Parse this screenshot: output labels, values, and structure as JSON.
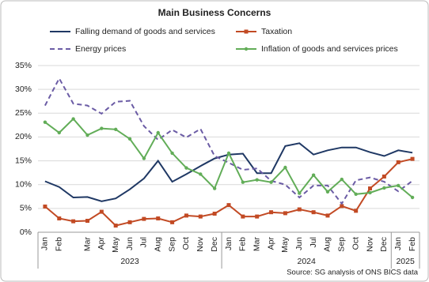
{
  "chart_data": {
    "type": "line",
    "title": "Main Business  Concerns",
    "source": "Source: SG analysis of ONS BICS data",
    "categories": [
      "Jan",
      "Feb",
      null,
      "Mar",
      "Apr",
      "May",
      "Jun",
      "Jul",
      "Aug",
      "Sep",
      "Oct",
      "Nov",
      "Dec",
      "Jan",
      "Feb",
      "Mar",
      "Apr",
      "May",
      "Jun",
      "Jul",
      "Aug",
      "Sep",
      "Oct",
      "Nov",
      "Dec",
      "Jan",
      "Feb"
    ],
    "x_groups": [
      {
        "label": "2023",
        "count": 13
      },
      {
        "label": "2024",
        "count": 12
      },
      {
        "label": "2025",
        "count": 2
      }
    ],
    "series": [
      {
        "name": "Falling demand of goods and services",
        "color": "#1f3864",
        "values": [
          10.7,
          9.5,
          7.3,
          7.4,
          6.5,
          7.1,
          9.0,
          11.3,
          15.0,
          10.6,
          12.2,
          13.9,
          15.5,
          16.3,
          16.5,
          12.4,
          12.4,
          18.1,
          18.7,
          16.3,
          17.2,
          17.8,
          17.8,
          16.8,
          16.0,
          17.2,
          16.7
        ]
      },
      {
        "name": "Taxation",
        "color": "#c24a24",
        "marker": "square",
        "values": [
          5.4,
          2.9,
          2.3,
          2.4,
          4.3,
          1.4,
          2.1,
          2.8,
          2.9,
          2.1,
          3.5,
          3.3,
          3.9,
          5.7,
          3.3,
          3.3,
          4.2,
          4.0,
          4.8,
          4.2,
          3.5,
          5.5,
          4.5,
          9.2,
          11.7,
          14.7,
          15.4
        ]
      },
      {
        "name": "Energy prices",
        "color": "#6b5ca5",
        "dashed": true,
        "values": [
          26.6,
          32.3,
          27.0,
          26.6,
          24.9,
          27.4,
          27.6,
          22.3,
          19.4,
          21.5,
          19.9,
          21.7,
          16.0,
          14.6,
          13.1,
          13.4,
          10.8,
          10.0,
          7.3,
          9.8,
          9.8,
          6.0,
          10.9,
          11.5,
          10.6,
          8.6,
          10.8
        ]
      },
      {
        "name": "Inflation of goods and services prices",
        "color": "#62ad58",
        "marker": "circle",
        "values": [
          23.1,
          20.9,
          23.8,
          20.4,
          21.8,
          21.6,
          19.6,
          15.5,
          20.9,
          16.6,
          13.5,
          12.2,
          9.2,
          16.6,
          10.5,
          11.0,
          10.5,
          13.6,
          8.2,
          12.0,
          8.5,
          11.1,
          8.0,
          8.3,
          9.3,
          9.8,
          7.3
        ]
      }
    ],
    "ylim": [
      0,
      35
    ],
    "yticks": [
      {
        "value": 0,
        "label": "0%"
      },
      {
        "value": 5,
        "label": "5%"
      },
      {
        "value": 10,
        "label": "10%"
      },
      {
        "value": 15,
        "label": "15%"
      },
      {
        "value": 20,
        "label": "20%"
      },
      {
        "value": 25,
        "label": "25%"
      },
      {
        "value": 30,
        "label": "30%"
      },
      {
        "value": 35,
        "label": "35%"
      }
    ],
    "grid": true
  }
}
